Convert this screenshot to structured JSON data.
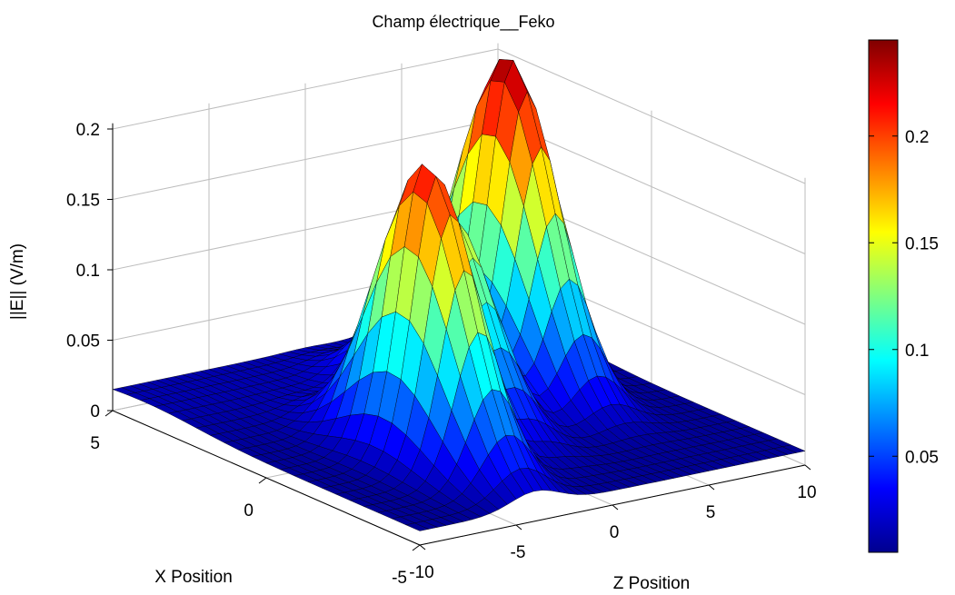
{
  "chart_data": {
    "type": "surface",
    "title": "Champ électrique__Feko",
    "xlabel": "X Position",
    "ylabel": "Z Position",
    "zlabel": "||E|| (V/m)",
    "x_range": [
      -5,
      5
    ],
    "y_range": [
      -10,
      10
    ],
    "z_range": [
      0,
      0.2
    ],
    "x_ticks": [
      "5",
      "0",
      "-5"
    ],
    "y_ticks": [
      "-10",
      "-5",
      "0",
      "5",
      "10"
    ],
    "z_ticks": [
      "0",
      "0.05",
      "0.1",
      "0.15",
      "0.2"
    ],
    "peaks": [
      {
        "x": -1.5,
        "z": -4,
        "value": 0.22
      },
      {
        "x": 0.5,
        "z": 0,
        "value": 0.16
      },
      {
        "x": 1.5,
        "z": 5,
        "value": 0.24
      }
    ],
    "baseline_value": 0.01,
    "colorbar": {
      "colormap": "jet",
      "range": [
        0.005,
        0.245
      ],
      "ticks": [
        "0.2",
        "0.15",
        "0.1",
        "0.05"
      ]
    },
    "grid": true
  }
}
